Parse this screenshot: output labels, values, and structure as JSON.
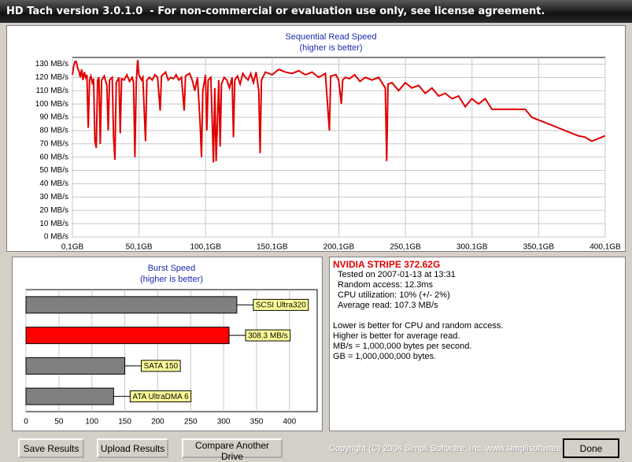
{
  "window": {
    "title": "HD Tach version 3.0.1.0  - For non-commercial or evaluation use only, see license agreement."
  },
  "chart_data": [
    {
      "type": "line",
      "title": "Sequential Read Speed",
      "subtitle": "(higher is better)",
      "color": "#e00000",
      "grid": true,
      "xlim": [
        0.1,
        400.1
      ],
      "xticks": [
        {
          "value": 0.1,
          "label": "0,1GB"
        },
        {
          "value": 50.1,
          "label": "50,1GB"
        },
        {
          "value": 100.1,
          "label": "100,1GB"
        },
        {
          "value": 150.1,
          "label": "150,1GB"
        },
        {
          "value": 200.1,
          "label": "200,1GB"
        },
        {
          "value": 250.1,
          "label": "250,1GB"
        },
        {
          "value": 300.1,
          "label": "300,1GB"
        },
        {
          "value": 350.1,
          "label": "350,1GB"
        },
        {
          "value": 400.1,
          "label": "400,1GB"
        }
      ],
      "ylim": [
        0,
        135
      ],
      "yticks": [
        {
          "value": 0,
          "label": "0 MB/s"
        },
        {
          "value": 10,
          "label": "10 MB/s"
        },
        {
          "value": 20,
          "label": "20 MB/s"
        },
        {
          "value": 30,
          "label": "30 MB/s"
        },
        {
          "value": 40,
          "label": "40 MB/s"
        },
        {
          "value": 50,
          "label": "50 MB/s"
        },
        {
          "value": 60,
          "label": "60 MB/s"
        },
        {
          "value": 70,
          "label": "70 MB/s"
        },
        {
          "value": 80,
          "label": "80 MB/s"
        },
        {
          "value": 90,
          "label": "90 MB/s"
        },
        {
          "value": 100,
          "label": "100 MB/s"
        },
        {
          "value": 110,
          "label": "110 MB/s"
        },
        {
          "value": 120,
          "label": "120 MB/s"
        },
        {
          "value": 130,
          "label": "130 MB/s"
        }
      ],
      "x": [
        0.1,
        1,
        2,
        3,
        4,
        5,
        6,
        7,
        8,
        9,
        10,
        11,
        12,
        13,
        14,
        15,
        16,
        17,
        18,
        19,
        20,
        21,
        22,
        24,
        26,
        27,
        28,
        30,
        31,
        32,
        33,
        35,
        36,
        37,
        39,
        41,
        43,
        45,
        46,
        47,
        48,
        49,
        50,
        52,
        53,
        55,
        56,
        58,
        60,
        62,
        64,
        66,
        67,
        70,
        72,
        74,
        76,
        78,
        80,
        82,
        84,
        85,
        88,
        90,
        92,
        94,
        96,
        97,
        98,
        100,
        101,
        102,
        104,
        106,
        107,
        108,
        110,
        111,
        112,
        114,
        116,
        118,
        120,
        121,
        122,
        124,
        126,
        128,
        130,
        132,
        134,
        136,
        138,
        140,
        141,
        142,
        145,
        150,
        155,
        160,
        165,
        170,
        175,
        180,
        185,
        190,
        193,
        194,
        198,
        200,
        202,
        203,
        205,
        208,
        212,
        216,
        220,
        225,
        230,
        235,
        236,
        237,
        240,
        245,
        250,
        255,
        260,
        265,
        270,
        275,
        280,
        285,
        290,
        295,
        300,
        305,
        310,
        315,
        320,
        330,
        340,
        345,
        350,
        355,
        360,
        365,
        370,
        375,
        380,
        385,
        390,
        395,
        400
      ],
      "values": [
        122,
        128,
        132,
        132,
        127,
        125,
        120,
        126,
        118,
        124,
        120,
        122,
        82,
        118,
        121,
        116,
        119,
        72,
        67,
        118,
        120,
        70,
        118,
        121,
        114,
        80,
        118,
        120,
        75,
        58,
        116,
        120,
        78,
        119,
        118,
        122,
        117,
        120,
        116,
        60,
        115,
        133,
        122,
        118,
        120,
        72,
        118,
        120,
        118,
        122,
        120,
        95,
        121,
        124,
        118,
        120,
        119,
        122,
        118,
        120,
        95,
        121,
        123,
        118,
        110,
        120,
        85,
        60,
        110,
        122,
        80,
        118,
        120,
        56,
        112,
        57,
        118,
        68,
        115,
        120,
        118,
        112,
        120,
        75,
        118,
        121,
        115,
        123,
        120,
        118,
        123,
        116,
        124,
        110,
        63,
        118,
        124,
        122,
        126,
        124,
        123,
        125,
        122,
        124,
        120,
        123,
        80,
        121,
        122,
        118,
        100,
        118,
        120,
        119,
        122,
        117,
        120,
        118,
        120,
        112,
        57,
        115,
        116,
        110,
        116,
        112,
        114,
        108,
        112,
        106,
        108,
        104,
        106,
        98,
        104,
        100,
        104,
        96,
        96,
        96,
        96,
        90,
        88,
        86,
        84,
        82,
        80,
        78,
        76,
        75,
        72,
        74,
        76
      ]
    },
    {
      "type": "bar",
      "orientation": "horizontal",
      "title": "Burst Speed",
      "subtitle": "(higher is better)",
      "categories": [
        "SCSI Ultra320",
        null,
        "SATA 150",
        "ATA UltraDMA 6"
      ],
      "values": [
        320,
        308.3,
        150,
        133
      ],
      "value_labels": [
        null,
        "308.3 MB/s",
        null,
        null
      ],
      "colors": [
        "#808080",
        "#ff0000",
        "#808080",
        "#808080"
      ],
      "xlim": [
        0,
        442
      ],
      "xticks": [
        0,
        50,
        100,
        150,
        200,
        250,
        300,
        350,
        400
      ],
      "grid": true
    }
  ],
  "info": {
    "drive": "NVIDIA STRIPE 372.62G",
    "stats": [
      "Tested on 2007-01-13 at 13:31",
      "Random access: 12.3ms",
      "CPU utilization: 10% (+/- 2%)",
      "Average read: 107.3 MB/s"
    ],
    "notes": [
      "Lower is better for CPU and random access.",
      "Higher is better for average read.",
      "MB/s = 1,000,000 bytes per second.",
      "GB = 1,000,000,000 bytes."
    ]
  },
  "buttons": [
    "Save Results",
    "Upload Results",
    "Compare Another Drive"
  ],
  "copyright": "Copyright (C) 2004 Simpli Software, Inc. www.simplisoftware.com",
  "done": "Done"
}
